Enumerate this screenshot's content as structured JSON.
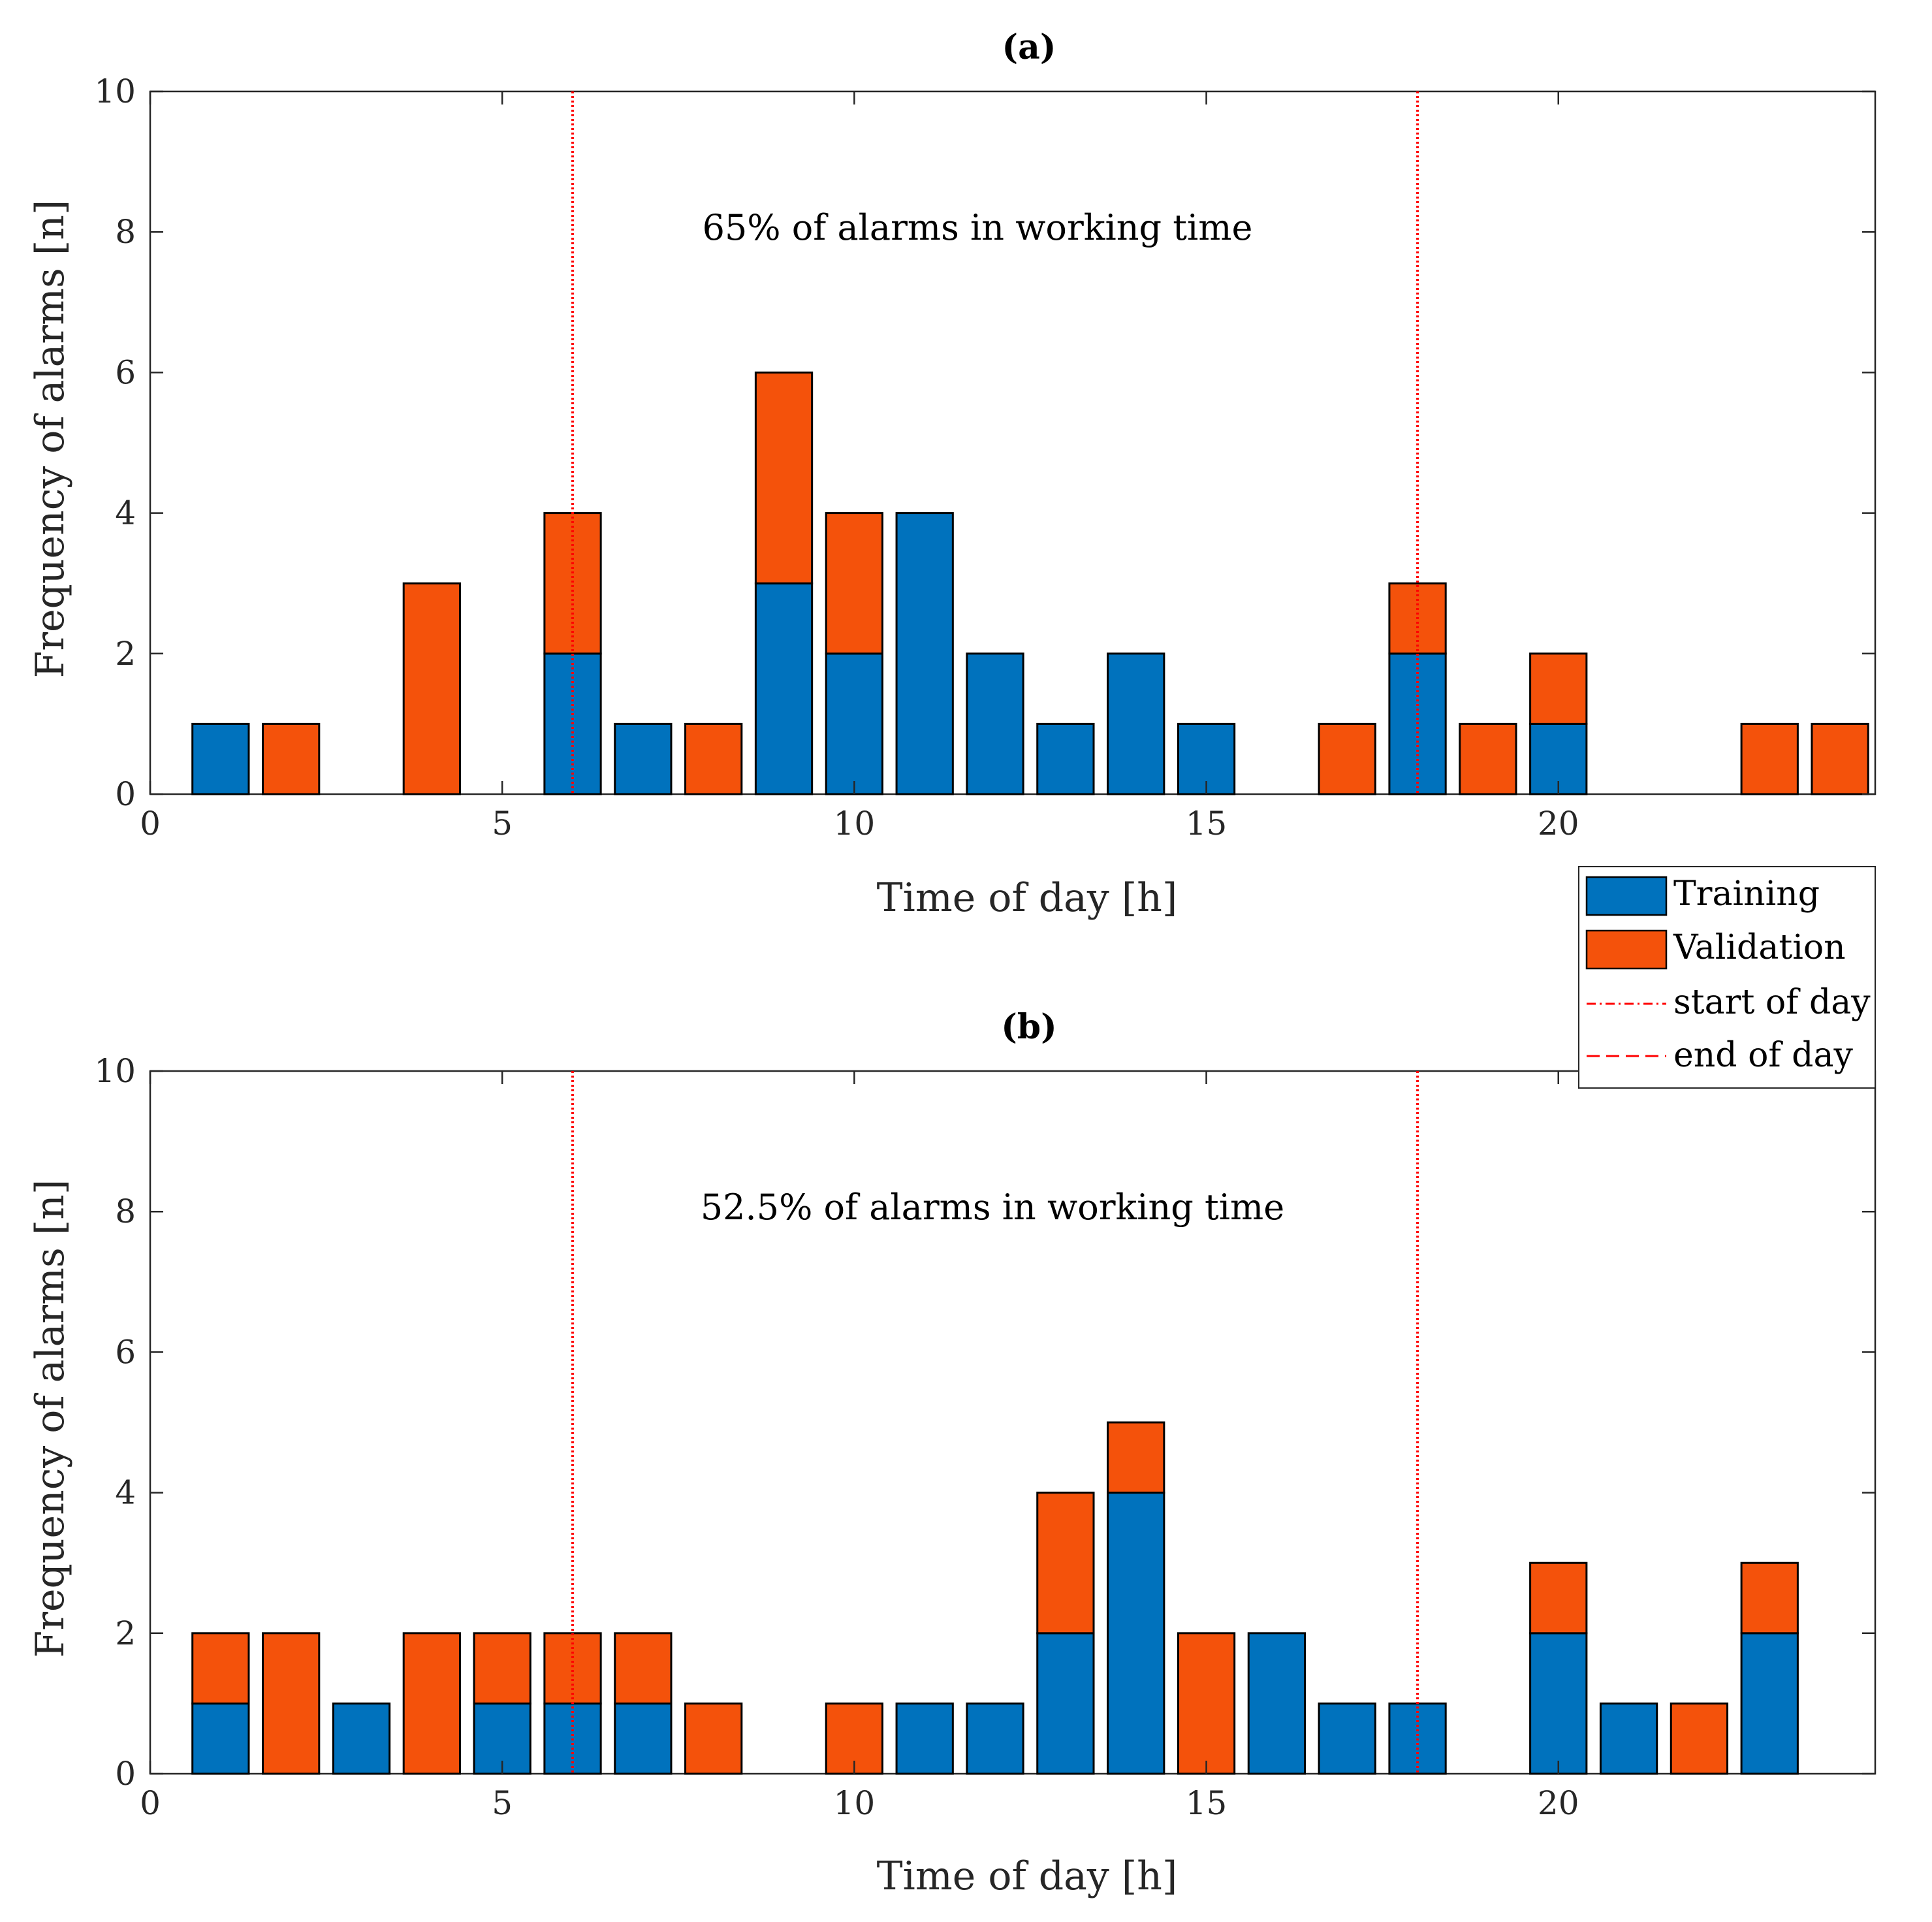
{
  "chart_data": [
    {
      "type": "bar",
      "stacked": true,
      "title": "(a)",
      "xlabel": "Time of day [h]",
      "ylabel": "Frequency of alarms [n]",
      "xlim": [
        0,
        24.5
      ],
      "ylim": [
        0,
        10
      ],
      "xticks": [
        "0",
        "5",
        "10",
        "15",
        "20"
      ],
      "yticks": [
        "0",
        "2",
        "4",
        "6",
        "8",
        "10"
      ],
      "annotation": "65% of alarms in working time",
      "x": [
        1,
        2,
        3,
        4,
        5,
        6,
        7,
        8,
        9,
        10,
        11,
        12,
        13,
        14,
        15,
        16,
        17,
        18,
        19,
        20,
        21,
        22,
        23,
        24
      ],
      "series": [
        {
          "name": "Training",
          "color": "#0072BD",
          "values": [
            1,
            0,
            0,
            0,
            0,
            2,
            1,
            0,
            3,
            2,
            4,
            2,
            1,
            2,
            1,
            0,
            0,
            2,
            0,
            1,
            0,
            0,
            0,
            0
          ]
        },
        {
          "name": "Validation",
          "color": "#F4520B",
          "values": [
            0,
            1,
            0,
            3,
            0,
            2,
            0,
            1,
            3,
            2,
            0,
            0,
            0,
            0,
            0,
            0,
            1,
            1,
            1,
            1,
            0,
            0,
            1,
            1
          ]
        }
      ],
      "vlines": [
        {
          "name": "start of day",
          "x": 6,
          "color": "#FF0000"
        },
        {
          "name": "end of day",
          "x": 18,
          "color": "#FF0000"
        }
      ]
    },
    {
      "type": "bar",
      "stacked": true,
      "title": "(b)",
      "xlabel": "Time of day [h]",
      "ylabel": "Frequency of alarms [n]",
      "xlim": [
        0,
        24.5
      ],
      "ylim": [
        0,
        10
      ],
      "xticks": [
        "0",
        "5",
        "10",
        "15",
        "20"
      ],
      "yticks": [
        "0",
        "2",
        "4",
        "6",
        "8",
        "10"
      ],
      "annotation": "52.5% of alarms in working time",
      "x": [
        1,
        2,
        3,
        4,
        5,
        6,
        7,
        8,
        9,
        10,
        11,
        12,
        13,
        14,
        15,
        16,
        17,
        18,
        19,
        20,
        21,
        22,
        23,
        24
      ],
      "series": [
        {
          "name": "Training",
          "color": "#0072BD",
          "values": [
            1,
            0,
            1,
            0,
            1,
            1,
            1,
            0,
            0,
            0,
            1,
            1,
            2,
            4,
            0,
            2,
            1,
            1,
            0,
            2,
            1,
            0,
            2,
            0
          ]
        },
        {
          "name": "Validation",
          "color": "#F4520B",
          "values": [
            1,
            2,
            0,
            2,
            1,
            1,
            1,
            1,
            0,
            1,
            0,
            0,
            2,
            1,
            2,
            0,
            0,
            0,
            0,
            1,
            0,
            1,
            1,
            0
          ]
        }
      ],
      "vlines": [
        {
          "name": "start of day",
          "x": 6,
          "color": "#FF0000"
        },
        {
          "name": "end of day",
          "x": 18,
          "color": "#FF0000"
        }
      ]
    }
  ],
  "legend": {
    "placement": "right, between panels",
    "entries": [
      {
        "label": "Training",
        "kind": "patch",
        "color": "#0072BD"
      },
      {
        "label": "Validation",
        "kind": "patch",
        "color": "#F4520B"
      },
      {
        "label": "start of day",
        "kind": "line",
        "style": "dash-dot",
        "color": "#FF0000"
      },
      {
        "label": "end of day",
        "kind": "line",
        "style": "dashed",
        "color": "#FF0000"
      }
    ]
  }
}
